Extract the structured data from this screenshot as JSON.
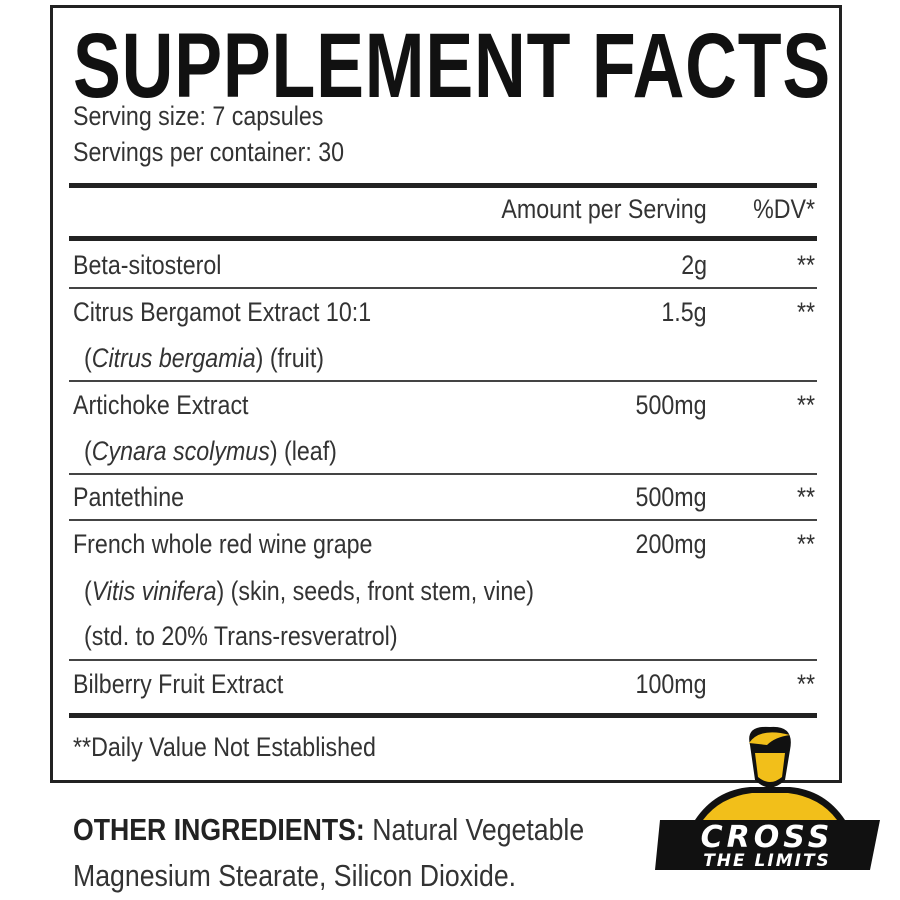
{
  "title": "SUPPLEMENT FACTS",
  "serving_size": "Serving size: 7 capsules",
  "servings_per_container": "Servings per container: 30",
  "header": {
    "amount": "Amount per Serving",
    "dv": "%DV*"
  },
  "rows": [
    {
      "name": "Beta-sitosterol",
      "amount": "2g",
      "dv": "**"
    },
    {
      "name": "Citrus Bergamot Extract 10:1",
      "latin": "Citrus bergamia",
      "part": " (fruit)",
      "amount": "1.5g",
      "dv": "**"
    },
    {
      "name": "Artichoke Extract",
      "latin": "Cynara scolymus",
      "part": " (leaf)",
      "amount": "500mg",
      "dv": "**"
    },
    {
      "name": "Pantethine",
      "amount": "500mg",
      "dv": "**"
    },
    {
      "name": "French whole red wine grape",
      "latin": "Vitis vinifera",
      "part": " (skin, seeds, front stem, vine)",
      "note": "(std. to 20% Trans-resveratrol)",
      "amount": "200mg",
      "dv": "**"
    },
    {
      "name": "Bilberry Fruit Extract",
      "amount": "100mg",
      "dv": "**"
    }
  ],
  "footnote": "**Daily Value Not Established",
  "other": {
    "label": "OTHER INGREDIENTS:",
    "line1": " Natural Vegetable",
    "line2": "Magnesium Stearate, Silicon Dioxide."
  },
  "logo": {
    "line1": "CROSS",
    "line2": "THE LIMITS",
    "colors": {
      "yellow": "#f2bf1a",
      "black": "#111111"
    }
  }
}
